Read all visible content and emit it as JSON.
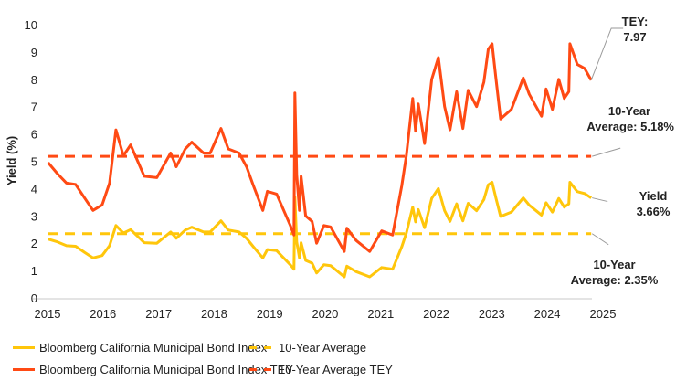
{
  "chart_data": {
    "type": "line",
    "ylabel": "Yield (%)",
    "xlabel": "",
    "ylim": [
      0,
      10
    ],
    "yticks": [
      "0",
      "1",
      "2",
      "3",
      "4",
      "5",
      "6",
      "7",
      "8",
      "9",
      "10"
    ],
    "xlim": [
      "2015-01-01",
      "2025-01-01"
    ],
    "xticks": [
      "2015",
      "2016",
      "2017",
      "2018",
      "2019",
      "2020",
      "2021",
      "2022",
      "2023",
      "2024",
      "2025"
    ],
    "grid": false,
    "legend_position": "bottom",
    "colors": {
      "yield": "#FFC60B",
      "tey": "#FF4A14",
      "leader": "#9a9a9a",
      "baseline": "#dcdcdc"
    },
    "dates": [
      "2015-01-05",
      "2015-03-07",
      "2015-05-06",
      "2015-07-05",
      "2015-09-03",
      "2015-10-27",
      "2015-12-26",
      "2016-02-13",
      "2016-03-26",
      "2016-05-14",
      "2016-07-01",
      "2016-09-28",
      "2016-12-20",
      "2017-03-21",
      "2017-04-27",
      "2017-06-25",
      "2017-08-07",
      "2017-10-23",
      "2017-12-06",
      "2018-02-15",
      "2018-04-04",
      "2018-06-14",
      "2018-08-02",
      "2018-09-13",
      "2018-11-17",
      "2018-12-17",
      "2019-02-16",
      "2019-05-17",
      "2019-06-10",
      "2019-06-16",
      "2019-06-28",
      "2019-07-16",
      "2019-07-27",
      "2019-08-26",
      "2019-10-07",
      "2019-11-06",
      "2019-12-24",
      "2020-02-06",
      "2020-05-06",
      "2020-05-23",
      "2020-07-23",
      "2020-10-20",
      "2021-01-07",
      "2021-03-20",
      "2021-05-19",
      "2021-06-18",
      "2021-07-30",
      "2021-08-18",
      "2021-09-05",
      "2021-10-16",
      "2021-12-02",
      "2022-01-15",
      "2022-02-25",
      "2022-04-01",
      "2022-05-15",
      "2022-06-25",
      "2022-07-30",
      "2022-09-23",
      "2022-11-10",
      "2022-12-09",
      "2023-01-03",
      "2023-01-29",
      "2023-02-28",
      "2023-05-10",
      "2023-07-27",
      "2023-09-05",
      "2023-11-24",
      "2023-12-24",
      "2024-02-04",
      "2024-03-17",
      "2024-04-22",
      "2024-05-22",
      "2024-05-29",
      "2024-07-16",
      "2024-09-02",
      "2024-10-16"
    ],
    "series": [
      {
        "name": "Bloomberg California Municipal Bond Index",
        "key": "yield",
        "style": "solid",
        "values": [
          2.15,
          2.05,
          1.91,
          1.89,
          1.66,
          1.46,
          1.55,
          1.91,
          2.65,
          2.37,
          2.5,
          2.02,
          2.0,
          2.41,
          2.18,
          2.48,
          2.59,
          2.41,
          2.41,
          2.82,
          2.48,
          2.41,
          2.18,
          1.89,
          1.46,
          1.77,
          1.73,
          1.21,
          1.05,
          3.7,
          2.05,
          1.46,
          2.02,
          1.37,
          1.27,
          0.91,
          1.21,
          1.18,
          0.77,
          1.16,
          0.96,
          0.77,
          1.11,
          1.05,
          1.87,
          2.37,
          3.32,
          2.78,
          3.23,
          2.57,
          3.64,
          4.0,
          3.19,
          2.8,
          3.44,
          2.82,
          3.46,
          3.19,
          3.6,
          4.14,
          4.23,
          3.64,
          2.98,
          3.14,
          3.66,
          3.39,
          3.03,
          3.48,
          3.14,
          3.64,
          3.32,
          3.44,
          4.23,
          3.89,
          3.82,
          3.66
        ]
      },
      {
        "name": "Bloomberg California Municipal Bond Index TEY",
        "key": "tey",
        "style": "solid",
        "values": [
          4.95,
          4.55,
          4.2,
          4.15,
          3.65,
          3.2,
          3.4,
          4.2,
          6.15,
          5.2,
          5.6,
          4.45,
          4.4,
          5.3,
          4.8,
          5.45,
          5.7,
          5.3,
          5.3,
          6.2,
          5.45,
          5.3,
          4.8,
          4.15,
          3.2,
          3.9,
          3.8,
          2.65,
          2.3,
          7.5,
          4.5,
          3.2,
          4.45,
          3.0,
          2.8,
          2.0,
          2.65,
          2.6,
          1.7,
          2.55,
          2.1,
          1.7,
          2.45,
          2.3,
          4.1,
          5.2,
          7.3,
          6.1,
          7.1,
          5.65,
          8.0,
          8.8,
          7.0,
          6.15,
          7.55,
          6.2,
          7.6,
          7.0,
          7.9,
          9.1,
          9.3,
          8.0,
          6.55,
          6.9,
          8.05,
          7.45,
          6.65,
          7.65,
          6.9,
          8.0,
          7.3,
          7.55,
          9.3,
          8.55,
          8.4,
          7.97
        ]
      },
      {
        "name": "10-Year Average",
        "key": "yield",
        "style": "dashed",
        "value": 2.35
      },
      {
        "name": "10-Year Average TEY",
        "key": "tey",
        "style": "dashed",
        "value": 5.18
      }
    ],
    "annotations": {
      "tey_label": "TEY:",
      "tey_value": "7.97",
      "tey_avg_label": "10-Year",
      "tey_avg_value": "Average: 5.18%",
      "yield_label": "Yield",
      "yield_value": "3.66%",
      "yield_avg_label": "10-Year",
      "yield_avg_value": "Average: 2.35%"
    }
  }
}
